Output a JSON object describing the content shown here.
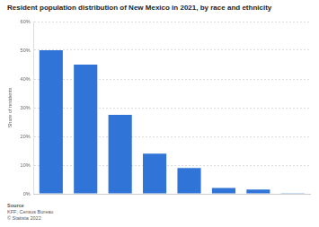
{
  "chart_data": {
    "type": "bar",
    "title": "Resident population distribution of New Mexico in 2021, by race and ethnicity",
    "y_label": "Share of residents",
    "categories": [
      null,
      null,
      null,
      null,
      null,
      null,
      null,
      null
    ],
    "values": [
      50,
      45,
      27.5,
      14,
      9,
      2,
      1.5,
      0.1
    ],
    "color": "#2f74d6",
    "ylim": [
      0,
      60
    ],
    "yticks": [
      {
        "value": 0,
        "label": "0%"
      },
      {
        "value": 10,
        "label": "10%"
      },
      {
        "value": 20,
        "label": "20%"
      },
      {
        "value": 30,
        "label": "30%"
      },
      {
        "value": 40,
        "label": "40%"
      },
      {
        "value": 50,
        "label": "50%"
      },
      {
        "value": 60,
        "label": "60%"
      }
    ],
    "grid": true,
    "tick_labels": "y",
    "source": [
      "Source",
      "KFF; Census Bureau",
      "© Statista 2022"
    ]
  }
}
